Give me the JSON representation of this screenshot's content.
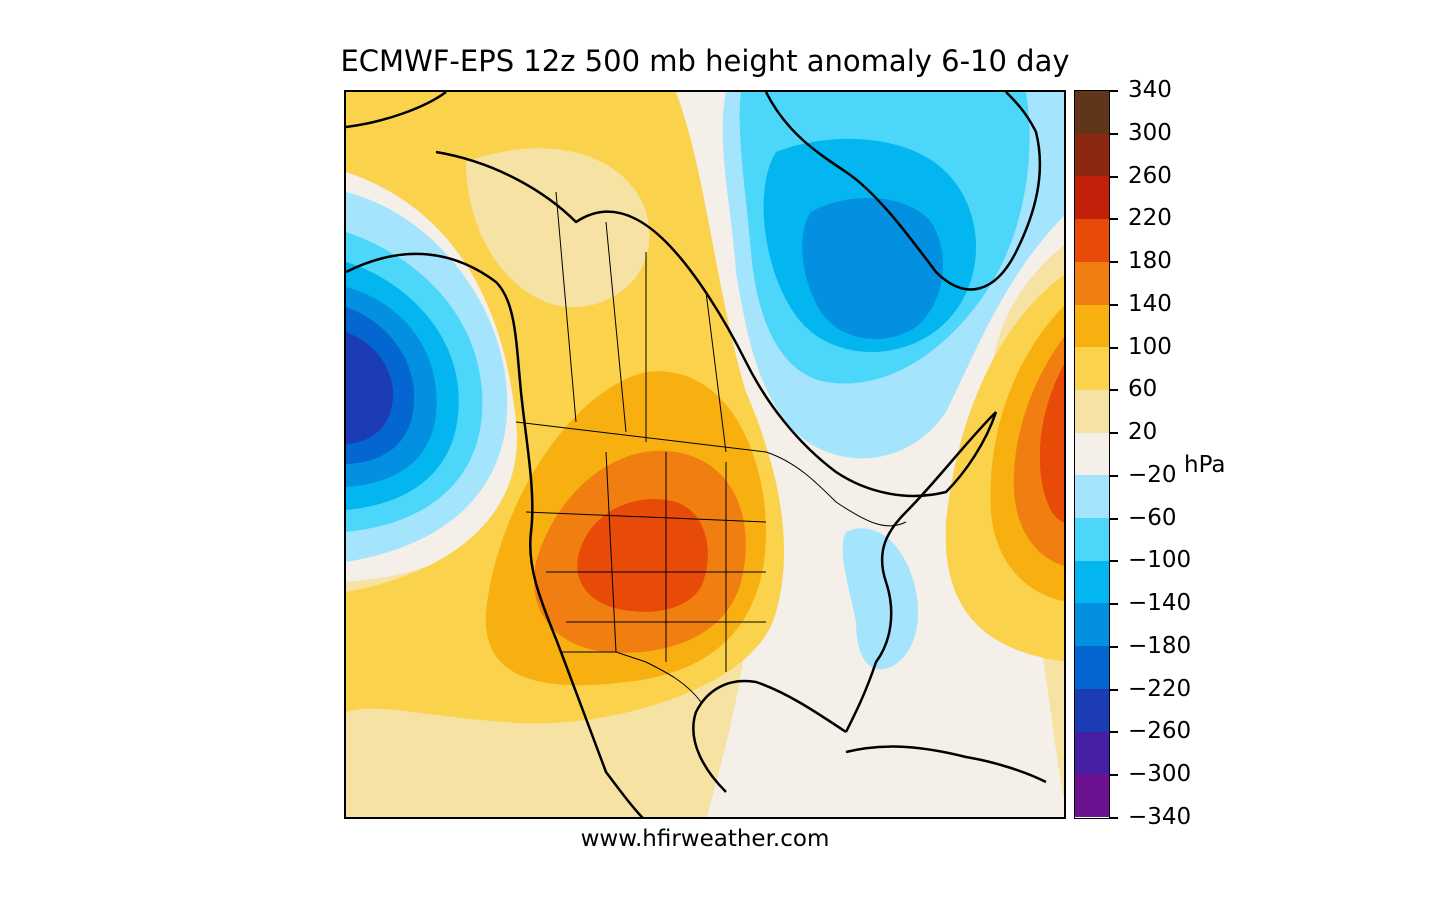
{
  "title": "ECMWF-EPS 12z 500 mb height anomaly 6-10 day",
  "footer": "www.hfirweather.com",
  "colorbar": {
    "unit": "hPa",
    "ticks": [
      "340",
      "300",
      "260",
      "220",
      "180",
      "140",
      "100",
      "60",
      "20",
      "−20",
      "−60",
      "−100",
      "−140",
      "−180",
      "−220",
      "−260",
      "−300",
      "−340"
    ],
    "colors": [
      "#5f3619",
      "#8c2811",
      "#c3200a",
      "#e84a08",
      "#f07e10",
      "#f8b010",
      "#fbd24c",
      "#f6e3a4",
      "#f4efe9",
      "#a4e4fc",
      "#4cd6fa",
      "#04b6f0",
      "#0490e0",
      "#0466d0",
      "#1c3cb6",
      "#4620a2",
      "#6c1190"
    ]
  },
  "map": {
    "region": "North America",
    "features": [
      "contour-fill",
      "coastlines",
      "country-borders",
      "state-borders"
    ],
    "anomaly_centers": [
      {
        "name": "west-coast-trough",
        "sign": "negative",
        "level": "−260"
      },
      {
        "name": "baffin-greenland-trough",
        "sign": "negative",
        "level": "−180"
      },
      {
        "name": "central-us-ridge",
        "sign": "positive",
        "level": "220"
      },
      {
        "name": "atlantic-ridge",
        "sign": "positive",
        "level": "220"
      },
      {
        "name": "east-coast-trough",
        "sign": "negative",
        "level": "−60"
      }
    ]
  }
}
